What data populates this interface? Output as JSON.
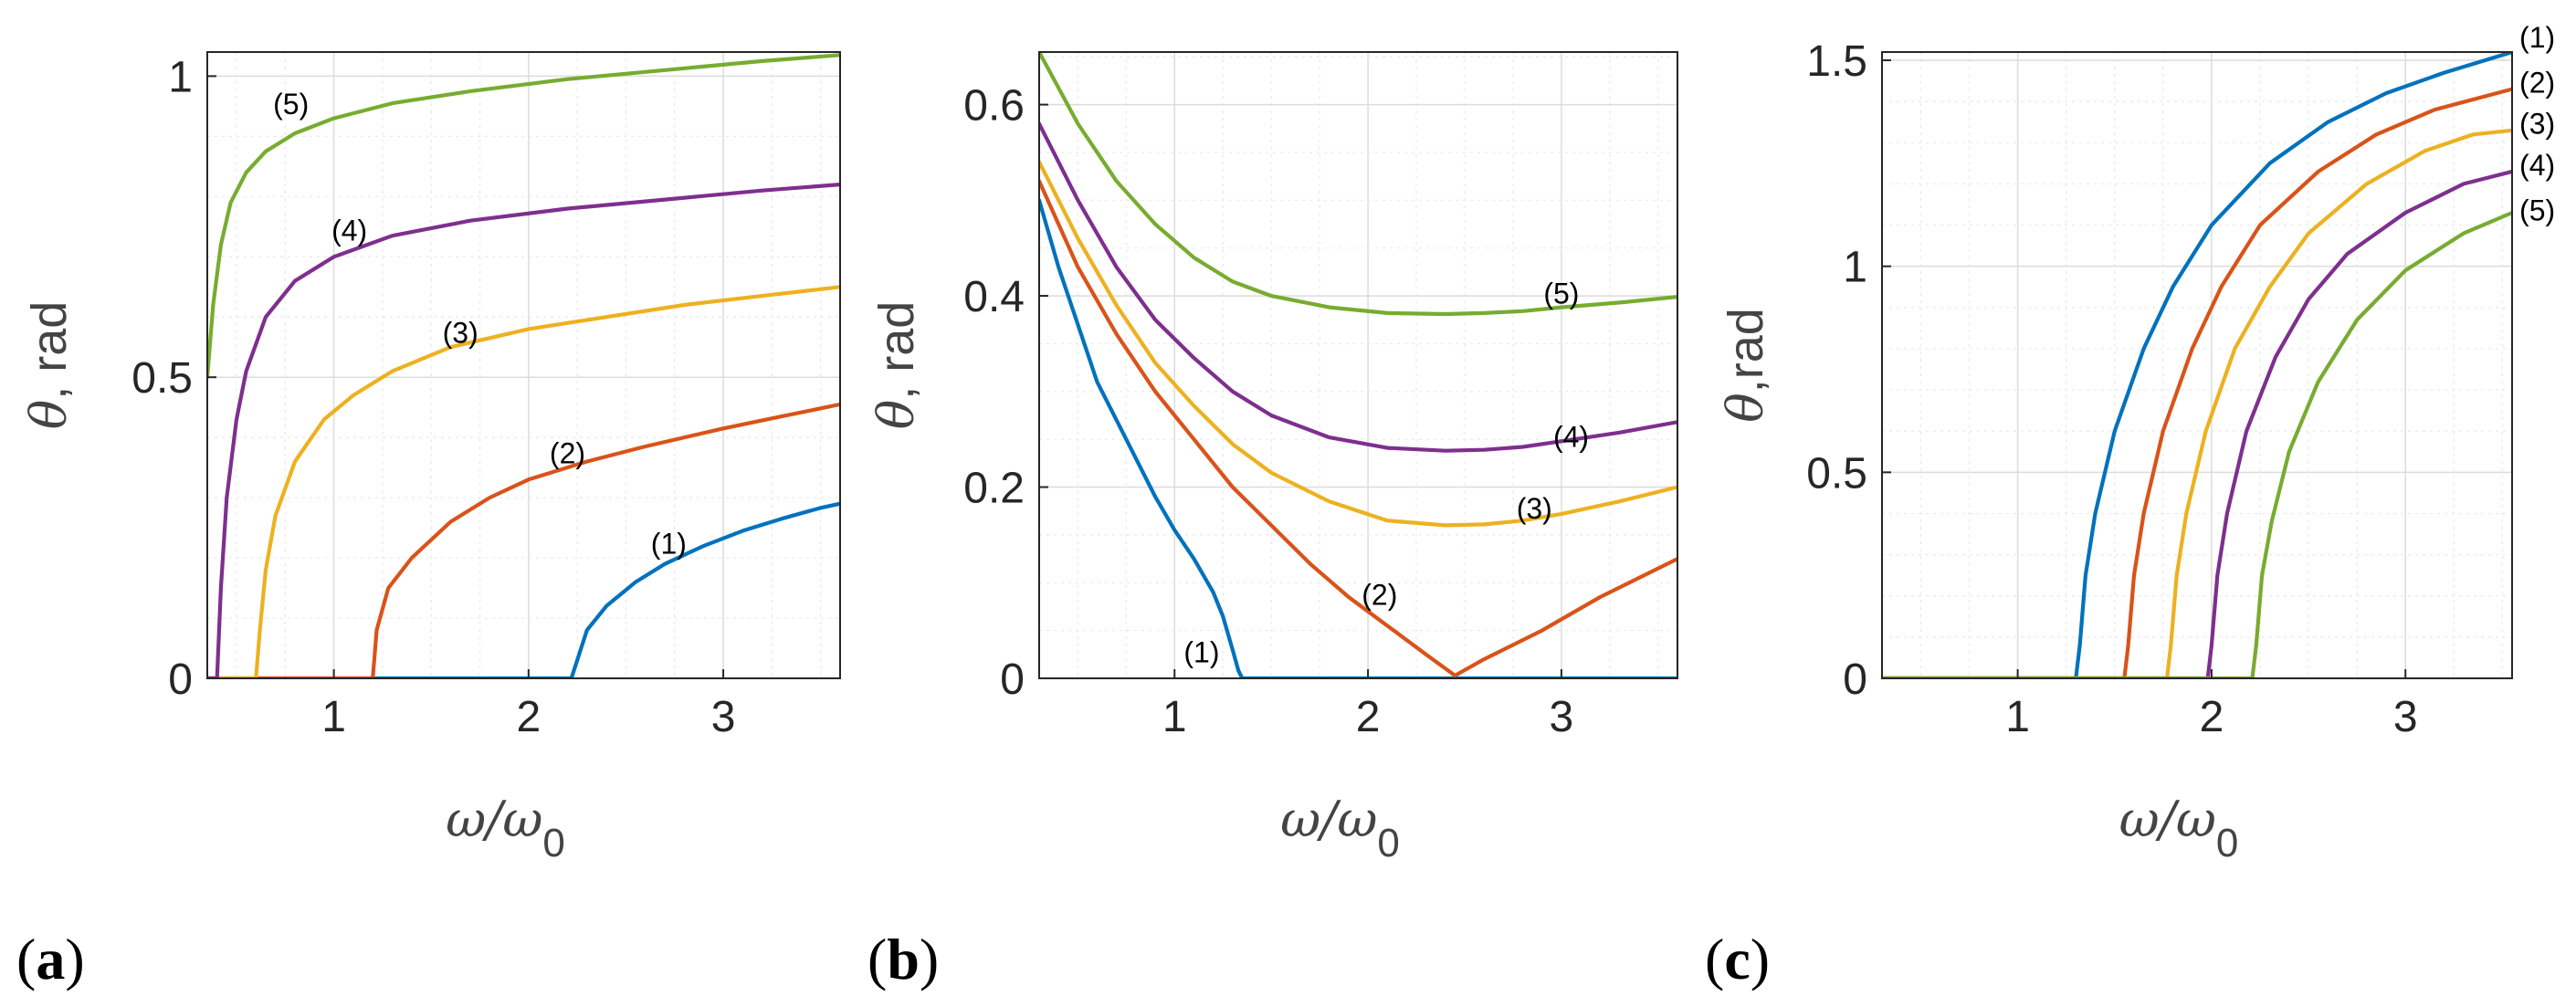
{
  "colors": {
    "s1": "#0072BD",
    "s2": "#D95319",
    "s3": "#EDB120",
    "s4": "#7E2F8E",
    "s5": "#77AC30"
  },
  "chart_data": [
    {
      "panel": "(a)",
      "type": "line",
      "xlabel": "ω/ω",
      "xlabel_sub": "0",
      "ylabel": "θ, rad",
      "xlim": [
        0.35,
        3.6
      ],
      "ylim": [
        0,
        1.04
      ],
      "xticks": [
        1,
        2,
        3
      ],
      "xtick_labels": [
        "1",
        "2",
        "3"
      ],
      "yticks": [
        0,
        0.5,
        1
      ],
      "ytick_labels": [
        "0",
        "0.5",
        "1"
      ],
      "series": [
        {
          "name": "(1)",
          "color_key": "s1",
          "x": [
            0.35,
            2.22,
            2.24,
            2.3,
            2.4,
            2.55,
            2.7,
            2.9,
            3.1,
            3.3,
            3.5,
            3.6
          ],
          "y": [
            0,
            0,
            0.02,
            0.08,
            0.12,
            0.16,
            0.19,
            0.22,
            0.245,
            0.265,
            0.283,
            0.29
          ],
          "label_pos": [
            2.72,
            0.22
          ]
        },
        {
          "name": "(2)",
          "color_key": "s2",
          "x": [
            0.35,
            1.2,
            1.22,
            1.28,
            1.4,
            1.6,
            1.8,
            2.0,
            2.3,
            2.6,
            3.0,
            3.3,
            3.6
          ],
          "y": [
            0,
            0,
            0.08,
            0.15,
            0.2,
            0.26,
            0.3,
            0.33,
            0.36,
            0.385,
            0.415,
            0.435,
            0.455
          ],
          "label_pos": [
            2.2,
            0.37
          ]
        },
        {
          "name": "(3)",
          "color_key": "s3",
          "x": [
            0.35,
            0.6,
            0.62,
            0.65,
            0.7,
            0.8,
            0.95,
            1.1,
            1.3,
            1.6,
            2.0,
            2.4,
            2.8,
            3.2,
            3.6
          ],
          "y": [
            0,
            0,
            0.08,
            0.18,
            0.27,
            0.36,
            0.43,
            0.47,
            0.51,
            0.55,
            0.58,
            0.6,
            0.62,
            0.635,
            0.65
          ],
          "label_pos": [
            1.65,
            0.57
          ]
        },
        {
          "name": "(4)",
          "color_key": "s4",
          "x": [
            0.35,
            0.4,
            0.42,
            0.45,
            0.5,
            0.55,
            0.65,
            0.8,
            1.0,
            1.3,
            1.7,
            2.2,
            2.7,
            3.2,
            3.6
          ],
          "y": [
            0,
            0,
            0.15,
            0.3,
            0.43,
            0.51,
            0.6,
            0.66,
            0.7,
            0.735,
            0.76,
            0.78,
            0.795,
            0.81,
            0.82
          ],
          "label_pos": [
            1.08,
            0.74
          ]
        },
        {
          "name": "(5)",
          "color_key": "s5",
          "x": [
            0.35,
            0.38,
            0.42,
            0.47,
            0.55,
            0.65,
            0.8,
            1.0,
            1.3,
            1.7,
            2.2,
            2.7,
            3.2,
            3.6
          ],
          "y": [
            0.5,
            0.62,
            0.72,
            0.79,
            0.84,
            0.875,
            0.905,
            0.93,
            0.955,
            0.975,
            0.995,
            1.01,
            1.025,
            1.035
          ],
          "label_pos": [
            0.78,
            0.95
          ]
        }
      ]
    },
    {
      "panel": "(b)",
      "type": "line",
      "xlabel": "ω/ω",
      "xlabel_sub": "0",
      "ylabel": "θ, rad",
      "xlim": [
        0.3,
        3.6
      ],
      "ylim": [
        0,
        0.655
      ],
      "xticks": [
        1,
        2,
        3
      ],
      "xtick_labels": [
        "1",
        "2",
        "3"
      ],
      "yticks": [
        0,
        0.2,
        0.4,
        0.6
      ],
      "ytick_labels": [
        "0",
        "0.2",
        "0.4",
        "0.6"
      ],
      "series": [
        {
          "name": "(1)",
          "color_key": "s1",
          "x": [
            0.3,
            0.4,
            0.5,
            0.6,
            0.7,
            0.8,
            0.9,
            1.0,
            1.1,
            1.2,
            1.25,
            1.3,
            1.33,
            1.35,
            3.6
          ],
          "y": [
            0.5,
            0.43,
            0.37,
            0.31,
            0.27,
            0.23,
            0.19,
            0.155,
            0.125,
            0.09,
            0.065,
            0.03,
            0.008,
            0,
            0
          ],
          "label_pos": [
            1.14,
            0.025
          ]
        },
        {
          "name": "(2)",
          "color_key": "s2",
          "x": [
            0.3,
            0.5,
            0.7,
            0.9,
            1.1,
            1.3,
            1.5,
            1.7,
            1.9,
            2.1,
            2.3,
            2.45,
            2.6,
            2.9,
            3.2,
            3.6
          ],
          "y": [
            0.52,
            0.43,
            0.36,
            0.3,
            0.25,
            0.2,
            0.16,
            0.12,
            0.085,
            0.055,
            0.025,
            0.003,
            0.02,
            0.05,
            0.085,
            0.125
          ],
          "label_pos": [
            2.06,
            0.085
          ]
        },
        {
          "name": "(3)",
          "color_key": "s3",
          "x": [
            0.3,
            0.5,
            0.7,
            0.9,
            1.1,
            1.3,
            1.5,
            1.8,
            2.1,
            2.4,
            2.6,
            2.8,
            3.0,
            3.3,
            3.6
          ],
          "y": [
            0.54,
            0.46,
            0.39,
            0.33,
            0.285,
            0.245,
            0.215,
            0.185,
            0.165,
            0.16,
            0.161,
            0.165,
            0.172,
            0.185,
            0.2
          ],
          "label_pos": [
            2.86,
            0.175
          ]
        },
        {
          "name": "(4)",
          "color_key": "s4",
          "x": [
            0.3,
            0.5,
            0.7,
            0.9,
            1.1,
            1.3,
            1.5,
            1.8,
            2.1,
            2.4,
            2.6,
            2.8,
            3.0,
            3.3,
            3.6
          ],
          "y": [
            0.58,
            0.5,
            0.43,
            0.375,
            0.335,
            0.3,
            0.275,
            0.252,
            0.241,
            0.238,
            0.239,
            0.242,
            0.248,
            0.257,
            0.268
          ],
          "label_pos": [
            3.05,
            0.25
          ]
        },
        {
          "name": "(5)",
          "color_key": "s5",
          "x": [
            0.3,
            0.5,
            0.7,
            0.9,
            1.1,
            1.3,
            1.5,
            1.8,
            2.1,
            2.4,
            2.6,
            2.8,
            3.0,
            3.3,
            3.6
          ],
          "y": [
            0.655,
            0.58,
            0.52,
            0.475,
            0.44,
            0.415,
            0.4,
            0.388,
            0.382,
            0.381,
            0.382,
            0.384,
            0.388,
            0.393,
            0.399
          ],
          "label_pos": [
            3.0,
            0.4
          ]
        }
      ]
    },
    {
      "panel": "(c)",
      "type": "line",
      "xlabel": "ω/ω",
      "xlabel_sub": "0",
      "ylabel": "θ,rad",
      "xlim": [
        0.3,
        3.55
      ],
      "ylim": [
        0,
        1.52
      ],
      "xticks": [
        1,
        2,
        3
      ],
      "xtick_labels": [
        "1",
        "2",
        "3"
      ],
      "yticks": [
        0,
        0.5,
        1,
        1.5
      ],
      "ytick_labels": [
        "0",
        "0.5",
        "1",
        "1.5"
      ],
      "series": [
        {
          "name": "(1)",
          "color_key": "s1",
          "x": [
            0.3,
            1.3,
            1.32,
            1.35,
            1.4,
            1.5,
            1.65,
            1.8,
            2.0,
            2.3,
            2.6,
            2.9,
            3.2,
            3.55
          ],
          "y": [
            0,
            0,
            0.08,
            0.25,
            0.4,
            0.6,
            0.8,
            0.95,
            1.1,
            1.25,
            1.35,
            1.42,
            1.47,
            1.52
          ],
          "label_pos": [
            3.68,
            1.55
          ]
        },
        {
          "name": "(2)",
          "color_key": "s2",
          "x": [
            0.3,
            1.55,
            1.57,
            1.6,
            1.65,
            1.75,
            1.9,
            2.05,
            2.25,
            2.55,
            2.85,
            3.15,
            3.55
          ],
          "y": [
            0,
            0,
            0.08,
            0.25,
            0.4,
            0.6,
            0.8,
            0.95,
            1.1,
            1.23,
            1.32,
            1.38,
            1.43
          ],
          "label_pos": [
            3.68,
            1.44
          ]
        },
        {
          "name": "(3)",
          "color_key": "s3",
          "x": [
            0.3,
            1.77,
            1.79,
            1.82,
            1.87,
            1.97,
            2.12,
            2.3,
            2.5,
            2.8,
            3.1,
            3.35,
            3.55
          ],
          "y": [
            0,
            0,
            0.08,
            0.25,
            0.4,
            0.6,
            0.8,
            0.95,
            1.08,
            1.2,
            1.28,
            1.32,
            1.33
          ],
          "label_pos": [
            3.68,
            1.34
          ]
        },
        {
          "name": "(4)",
          "color_key": "s4",
          "x": [
            0.3,
            1.98,
            2.0,
            2.03,
            2.08,
            2.18,
            2.33,
            2.5,
            2.7,
            3.0,
            3.3,
            3.55
          ],
          "y": [
            0,
            0,
            0.08,
            0.25,
            0.4,
            0.6,
            0.78,
            0.92,
            1.03,
            1.13,
            1.2,
            1.23
          ],
          "label_pos": [
            3.68,
            1.24
          ]
        },
        {
          "name": "(5)",
          "color_key": "s5",
          "x": [
            0.3,
            2.21,
            2.23,
            2.26,
            2.31,
            2.4,
            2.55,
            2.75,
            3.0,
            3.3,
            3.55
          ],
          "y": [
            0,
            0,
            0.08,
            0.25,
            0.38,
            0.55,
            0.72,
            0.87,
            0.99,
            1.08,
            1.13
          ],
          "label_pos": [
            3.68,
            1.13
          ]
        }
      ]
    }
  ]
}
